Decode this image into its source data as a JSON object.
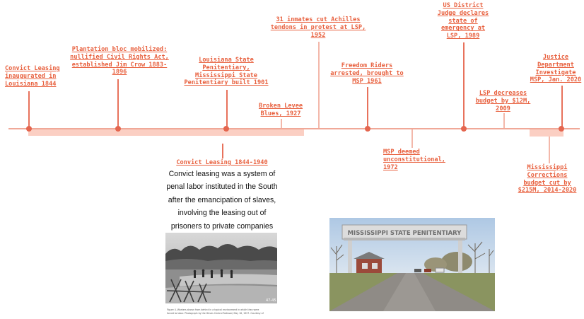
{
  "events": [
    {
      "id": "convict-leasing-1844",
      "lines": [
        "Convict Leasing",
        "inaugurated in",
        "Louisiana 1844"
      ]
    },
    {
      "id": "plantation-bloc",
      "lines": [
        "Plantation bloc mobilized:",
        "nullified Civil Rights Act,",
        "established Jim Crow 1883-",
        "1896"
      ]
    },
    {
      "id": "lsp-msp-built",
      "lines": [
        "Louisiana State",
        "Penitentiary,",
        "Mississippi State",
        "Penitentiary built 1901"
      ]
    },
    {
      "id": "broken-levee",
      "lines": [
        "Broken Levee",
        "Blues, 1927"
      ]
    },
    {
      "id": "achilles-1952",
      "lines": [
        "31 inmates cut Achilles",
        "tendons in protest at LSP,",
        "1952"
      ]
    },
    {
      "id": "freedom-riders",
      "lines": [
        "Freedom Riders",
        "arrested, brought to",
        "MSP 1961"
      ]
    },
    {
      "id": "judge-1989",
      "lines": [
        "US District",
        "Judge declares",
        "state of",
        "emergency at",
        "LSP, 1989"
      ]
    },
    {
      "id": "lsp-budget-2009",
      "lines": [
        "LSP decreases",
        "budget by $12M,",
        "2009"
      ]
    },
    {
      "id": "doj-2020",
      "lines": [
        "Justice",
        "Department",
        "Investigate",
        "MSP, Jan. 2020"
      ]
    },
    {
      "id": "convict-leasing-period",
      "lines": [
        "Convict Leasing 1844-1940"
      ]
    },
    {
      "id": "msp-unconstitutional",
      "lines": [
        "MSP deemed",
        "unconstitutional,",
        "1972"
      ]
    },
    {
      "id": "corrections-cut",
      "lines": [
        "Mississippi",
        "Corrections",
        "budget cut by",
        "$215M, 2014-2020"
      ]
    }
  ],
  "description": {
    "lines": [
      "Convict leasing was a system of",
      "penal labor instituted in the South",
      "after the emancipation of slaves,",
      "involving the leasing out of",
      "prisoners to private companies"
    ]
  },
  "photos": {
    "convict_photo": {
      "caption_number": "47-45",
      "caption_lines": [
        "Figure 4.  Workers shown from behind in a typical environment in which they were",
        "forced to labor. Photograph by the Illinois Central Railroad, May 16, 1927. Courtesy of"
      ]
    },
    "msp_gate": {
      "sign": "MISSISSIPPI STATE PENITENTIARY"
    }
  },
  "colors": {
    "accent": "#e8613f",
    "band": "#fbcfc3",
    "axis": "#f0a898"
  }
}
